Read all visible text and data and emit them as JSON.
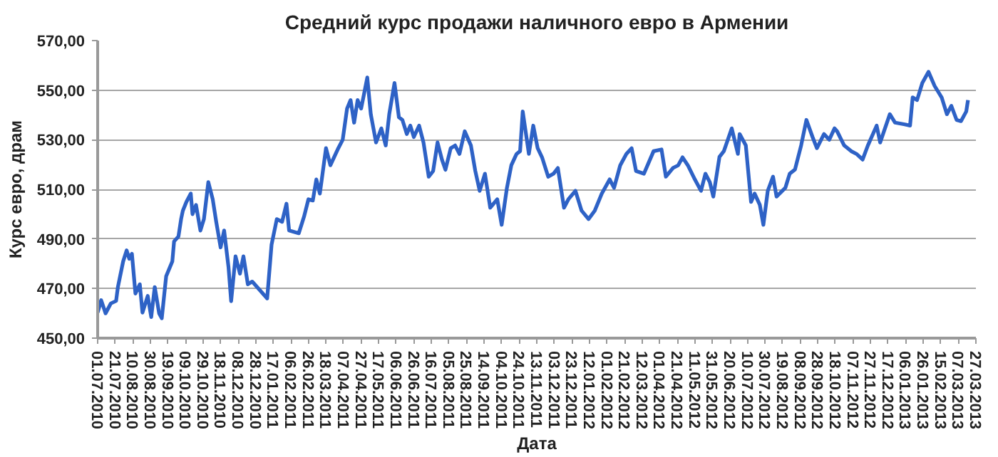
{
  "chart_data": {
    "type": "line",
    "title": "Средний курс продажи наличного евро в Армении",
    "xlabel": "Дата",
    "ylabel": "Курс евро, драм",
    "xlim": [
      "2010-07-01",
      "2013-03-27"
    ],
    "ylim": [
      450,
      570
    ],
    "yticks": [
      {
        "value": 450,
        "label": "450,00"
      },
      {
        "value": 470,
        "label": "470,00"
      },
      {
        "value": 490,
        "label": "490,00"
      },
      {
        "value": 510,
        "label": "510,00"
      },
      {
        "value": 530,
        "label": "530,00"
      },
      {
        "value": 550,
        "label": "550,00"
      },
      {
        "value": 570,
        "label": "570,00"
      }
    ],
    "xticks": [
      {
        "value": "2010-07-01",
        "label": "01.07.2010"
      },
      {
        "value": "2010-07-21",
        "label": "21.07.2010"
      },
      {
        "value": "2010-08-10",
        "label": "10.08.2010"
      },
      {
        "value": "2010-08-30",
        "label": "30.08.2010"
      },
      {
        "value": "2010-09-19",
        "label": "19.09.2010"
      },
      {
        "value": "2010-10-09",
        "label": "09.10.2010"
      },
      {
        "value": "2010-10-29",
        "label": "29.10.2010"
      },
      {
        "value": "2010-11-18",
        "label": "18.11.2010"
      },
      {
        "value": "2010-12-08",
        "label": "08.12.2010"
      },
      {
        "value": "2010-12-28",
        "label": "28.12.2010"
      },
      {
        "value": "2011-01-17",
        "label": "17.01.2011"
      },
      {
        "value": "2011-02-06",
        "label": "06.02.2011"
      },
      {
        "value": "2011-02-26",
        "label": "26.02.2011"
      },
      {
        "value": "2011-03-18",
        "label": "18.03.2011"
      },
      {
        "value": "2011-04-07",
        "label": "07.04.2011"
      },
      {
        "value": "2011-04-27",
        "label": "27.04.2011"
      },
      {
        "value": "2011-05-17",
        "label": "17.05.2011"
      },
      {
        "value": "2011-06-06",
        "label": "06.06.2011"
      },
      {
        "value": "2011-06-26",
        "label": "26.06.2011"
      },
      {
        "value": "2011-07-16",
        "label": "16.07.2011"
      },
      {
        "value": "2011-08-05",
        "label": "05.08.2011"
      },
      {
        "value": "2011-08-25",
        "label": "25.08.2011"
      },
      {
        "value": "2011-09-14",
        "label": "14.09.2011"
      },
      {
        "value": "2011-10-04",
        "label": "04.10.2011"
      },
      {
        "value": "2011-10-24",
        "label": "24.10.2011"
      },
      {
        "value": "2011-11-13",
        "label": "13.11.2011"
      },
      {
        "value": "2011-12-03",
        "label": "03.12.2011"
      },
      {
        "value": "2011-12-23",
        "label": "23.12.2011"
      },
      {
        "value": "2012-01-12",
        "label": "12.01.2012"
      },
      {
        "value": "2012-02-01",
        "label": "01.02.2012"
      },
      {
        "value": "2012-02-21",
        "label": "21.02.2012"
      },
      {
        "value": "2012-03-12",
        "label": "12.03.2012"
      },
      {
        "value": "2012-04-01",
        "label": "01.04.2012"
      },
      {
        "value": "2012-04-21",
        "label": "21.04.2012"
      },
      {
        "value": "2012-05-11",
        "label": "11.05.2012"
      },
      {
        "value": "2012-05-31",
        "label": "31.05.2012"
      },
      {
        "value": "2012-06-20",
        "label": "20.06.2012"
      },
      {
        "value": "2012-07-10",
        "label": "10.07.2012"
      },
      {
        "value": "2012-07-30",
        "label": "30.07.2012"
      },
      {
        "value": "2012-08-19",
        "label": "19.08.2012"
      },
      {
        "value": "2012-09-08",
        "label": "08.09.2012"
      },
      {
        "value": "2012-09-28",
        "label": "28.09.2012"
      },
      {
        "value": "2012-10-18",
        "label": "18.10.2012"
      },
      {
        "value": "2012-11-07",
        "label": "07.11.2012"
      },
      {
        "value": "2012-11-27",
        "label": "27.11.2012"
      },
      {
        "value": "2012-12-17",
        "label": "17.12.2012"
      },
      {
        "value": "2013-01-06",
        "label": "06.01.2013"
      },
      {
        "value": "2013-01-26",
        "label": "26.01.2013"
      },
      {
        "value": "2013-02-15",
        "label": "15.02.2013"
      },
      {
        "value": "2013-03-07",
        "label": "07.03.2013"
      },
      {
        "value": "2013-03-27",
        "label": "27.03.2013"
      }
    ],
    "grid": "y",
    "x": [
      "2010-07-01",
      "2010-07-05",
      "2010-07-10",
      "2010-07-16",
      "2010-07-22",
      "2010-07-24",
      "2010-07-30",
      "2010-08-03",
      "2010-08-06",
      "2010-08-09",
      "2010-08-13",
      "2010-08-18",
      "2010-08-21",
      "2010-08-27",
      "2010-08-31",
      "2010-09-04",
      "2010-09-09",
      "2010-09-12",
      "2010-09-17",
      "2010-09-24",
      "2010-09-26",
      "2010-10-01",
      "2010-10-04",
      "2010-10-06",
      "2010-10-10",
      "2010-10-15",
      "2010-10-17",
      "2010-10-21",
      "2010-10-26",
      "2010-10-30",
      "2010-11-04",
      "2010-11-09",
      "2010-11-13",
      "2010-11-18",
      "2010-11-22",
      "2010-11-27",
      "2010-11-30",
      "2010-12-05",
      "2010-12-10",
      "2010-12-14",
      "2010-12-19",
      "2010-12-24",
      "2011-01-10",
      "2011-01-15",
      "2011-01-21",
      "2011-01-27",
      "2011-02-01",
      "2011-02-04",
      "2011-02-15",
      "2011-02-21",
      "2011-02-26",
      "2011-03-03",
      "2011-03-07",
      "2011-03-11",
      "2011-03-18",
      "2011-03-23",
      "2011-04-01",
      "2011-04-06",
      "2011-04-11",
      "2011-04-15",
      "2011-04-19",
      "2011-04-23",
      "2011-04-27",
      "2011-05-04",
      "2011-05-08",
      "2011-05-14",
      "2011-05-20",
      "2011-05-25",
      "2011-05-29",
      "2011-06-04",
      "2011-06-09",
      "2011-06-13",
      "2011-06-18",
      "2011-06-22",
      "2011-06-26",
      "2011-07-02",
      "2011-07-07",
      "2011-07-13",
      "2011-07-18",
      "2011-07-23",
      "2011-07-28",
      "2011-08-01",
      "2011-08-07",
      "2011-08-12",
      "2011-08-17",
      "2011-08-23",
      "2011-08-30",
      "2011-09-04",
      "2011-09-09",
      "2011-09-15",
      "2011-09-21",
      "2011-09-29",
      "2011-10-04",
      "2011-10-10",
      "2011-10-15",
      "2011-10-21",
      "2011-10-25",
      "2011-10-28",
      "2011-11-04",
      "2011-11-09",
      "2011-11-14",
      "2011-11-19",
      "2011-11-26",
      "2011-12-02",
      "2011-12-07",
      "2011-12-14",
      "2011-12-19",
      "2011-12-27",
      "2012-01-03",
      "2012-01-11",
      "2012-01-18",
      "2012-01-26",
      "2012-02-04",
      "2012-02-09",
      "2012-02-16",
      "2012-02-23",
      "2012-02-29",
      "2012-03-05",
      "2012-03-14",
      "2012-03-25",
      "2012-04-03",
      "2012-04-08",
      "2012-04-16",
      "2012-04-22",
      "2012-04-27",
      "2012-05-03",
      "2012-05-11",
      "2012-05-18",
      "2012-05-23",
      "2012-05-28",
      "2012-06-01",
      "2012-06-08",
      "2012-06-13",
      "2012-06-22",
      "2012-06-29",
      "2012-07-01",
      "2012-07-08",
      "2012-07-14",
      "2012-07-18",
      "2012-07-24",
      "2012-07-28",
      "2012-08-02",
      "2012-08-08",
      "2012-08-12",
      "2012-08-22",
      "2012-08-27",
      "2012-09-02",
      "2012-09-09",
      "2012-09-15",
      "2012-09-22",
      "2012-09-27",
      "2012-10-05",
      "2012-10-11",
      "2012-10-17",
      "2012-10-20",
      "2012-10-28",
      "2012-11-05",
      "2012-11-11",
      "2012-11-18",
      "2012-11-24",
      "2012-12-04",
      "2012-12-08",
      "2012-12-19",
      "2012-12-25",
      "2013-01-05",
      "2013-01-11",
      "2013-01-14",
      "2013-01-19",
      "2013-01-25",
      "2013-02-01",
      "2013-02-08",
      "2013-02-16",
      "2013-02-22",
      "2013-02-27",
      "2013-03-05",
      "2013-03-10",
      "2013-03-16",
      "2013-03-18"
    ],
    "series": [
      {
        "color": "#2e62c6",
        "values": [
          460.3,
          465.3,
          460,
          464,
          465,
          470.5,
          480.9,
          485.4,
          482,
          484,
          468,
          471.7,
          460.3,
          467,
          458.5,
          470.6,
          460,
          458,
          475,
          480.9,
          489,
          491,
          498,
          501.4,
          504.9,
          508.3,
          500,
          503.7,
          493.4,
          498,
          512.9,
          506,
          496.9,
          486.6,
          493.4,
          478.6,
          464.9,
          483,
          476,
          483,
          471.7,
          472.8,
          466,
          487.7,
          498,
          496.9,
          504.2,
          493.4,
          492.3,
          499,
          506,
          505.5,
          514,
          508.3,
          526.6,
          519.7,
          526.6,
          530,
          542.6,
          546,
          536.9,
          546,
          542.6,
          555.1,
          540.3,
          528.9,
          534.6,
          527.7,
          540.3,
          552.9,
          539.1,
          538,
          532.3,
          535.7,
          531.1,
          535.7,
          528.9,
          515.1,
          517.4,
          528.9,
          522,
          517.9,
          526.6,
          527.7,
          524.3,
          533.4,
          527.7,
          517.4,
          509.4,
          516.3,
          502.6,
          506,
          495.7,
          510.6,
          519.7,
          524.3,
          525.4,
          541.4,
          524.3,
          535.7,
          526.6,
          522.9,
          515.1,
          516.3,
          518.6,
          502.6,
          506,
          509.4,
          501.4,
          498,
          501.4,
          508.3,
          514,
          510.6,
          519.7,
          524.3,
          526.6,
          517.4,
          516.3,
          525.4,
          526.1,
          515.1,
          518.6,
          519.7,
          522.9,
          519.7,
          514,
          509.4,
          516.3,
          512.9,
          507.1,
          523.1,
          525.4,
          534.6,
          524.3,
          532.3,
          527.7,
          504.9,
          508.3,
          503.7,
          495.7,
          509.4,
          515.1,
          507.1,
          510.6,
          516.3,
          518,
          527.7,
          538,
          531.1,
          526.6,
          532.3,
          530,
          534.6,
          533.4,
          527.7,
          525.4,
          524.3,
          522,
          527.7,
          535.7,
          528.9,
          540.3,
          536.9,
          536.2,
          535.7,
          547.1,
          546,
          552.9,
          557.4,
          551.7,
          547.1,
          540.3,
          543.7,
          538,
          537.5,
          541.4,
          546
        ]
      }
    ]
  }
}
